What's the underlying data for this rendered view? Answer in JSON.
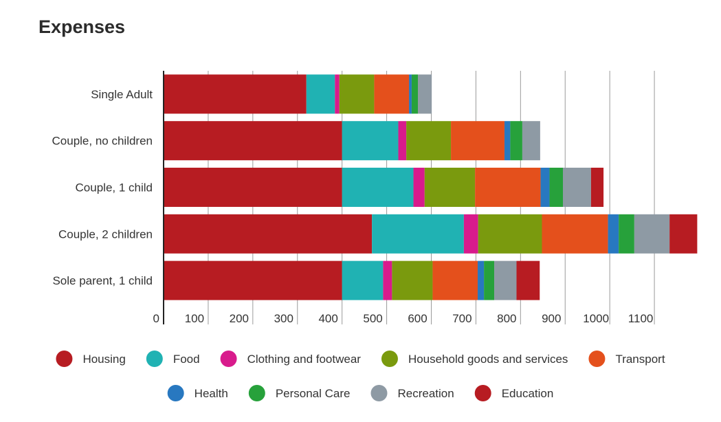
{
  "chart_data": {
    "type": "bar",
    "orientation": "horizontal",
    "stacked": true,
    "title": "Expenses",
    "xlabel": "",
    "ylabel": "",
    "xlim": [
      0,
      1200
    ],
    "x_ticks": [
      "0",
      "100",
      "200",
      "300",
      "400",
      "500",
      "600",
      "700",
      "800",
      "900",
      "1000",
      "1100"
    ],
    "grid": true,
    "legend_position": "bottom",
    "categories": [
      "Single Adult",
      "Couple, no children",
      "Couple, 1 child",
      "Couple, 2 children",
      "Sole parent, 1 child"
    ],
    "series": [
      {
        "name": "Housing",
        "color": "#b71c22",
        "values": [
          320,
          400,
          400,
          467,
          400
        ]
      },
      {
        "name": "Food",
        "color": "#20b2b3",
        "values": [
          64,
          126,
          160,
          206,
          92
        ]
      },
      {
        "name": "Clothing and footwear",
        "color": "#d81b8c",
        "values": [
          10,
          18,
          25,
          32,
          20
        ]
      },
      {
        "name": "Household goods and services",
        "color": "#7a9a0e",
        "values": [
          78,
          100,
          113,
          143,
          91
        ]
      },
      {
        "name": "Transport",
        "color": "#e4501c",
        "values": [
          78,
          120,
          147,
          148,
          101
        ]
      },
      {
        "name": "Health",
        "color": "#2878c0",
        "values": [
          6,
          13,
          20,
          24,
          14
        ]
      },
      {
        "name": "Personal Care",
        "color": "#27a13b",
        "values": [
          14,
          27,
          30,
          35,
          23
        ]
      },
      {
        "name": "Recreation",
        "color": "#8e9aa4",
        "values": [
          31,
          40,
          63,
          79,
          50
        ]
      },
      {
        "name": "Education",
        "color": "#b71c22",
        "values": [
          0,
          0,
          28,
          62,
          52
        ]
      }
    ]
  }
}
